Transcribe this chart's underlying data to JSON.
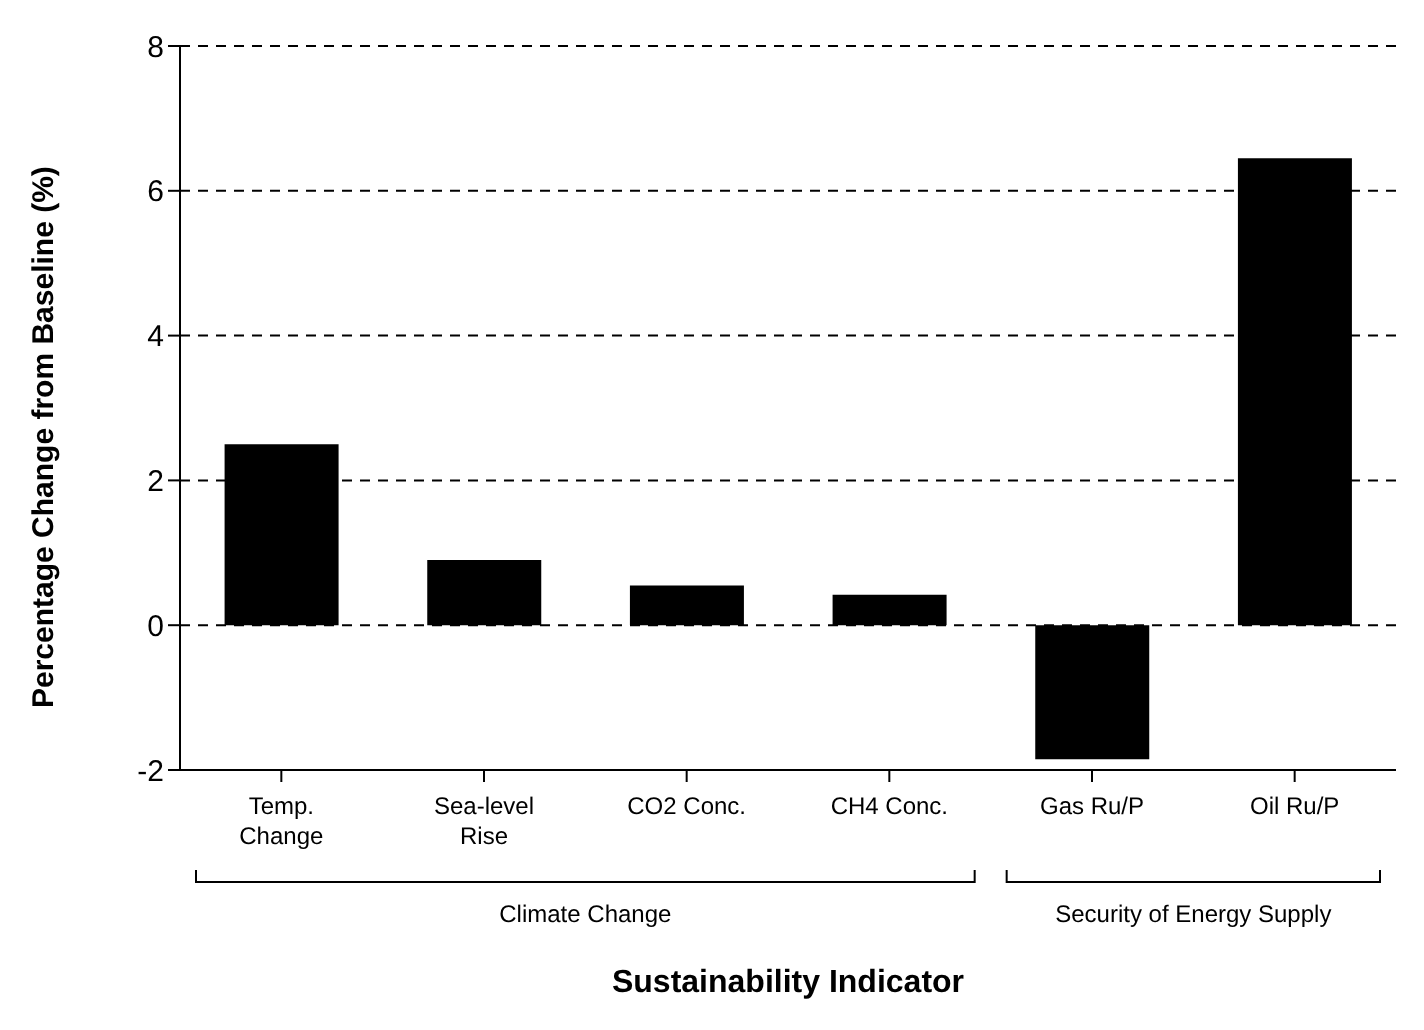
{
  "chart_data": {
    "type": "bar",
    "categories": [
      "Temp. Change",
      "Sea-level Rise",
      "CO2 Conc.",
      "CH4 Conc.",
      "Gas Ru/P",
      "Oil Ru/P"
    ],
    "values": [
      2.5,
      0.9,
      0.55,
      0.42,
      -1.85,
      6.45
    ],
    "color": "#000000",
    "xlabel": "Sustainability Indicator",
    "ylabel": "Percentage Change from Baseline (%)",
    "ylim": [
      -2,
      8
    ],
    "yticks": [
      -2,
      0,
      2,
      4,
      6,
      8
    ],
    "grid": "y",
    "annotations": [
      "Climate Change",
      "Security of Energy Supply"
    ]
  }
}
